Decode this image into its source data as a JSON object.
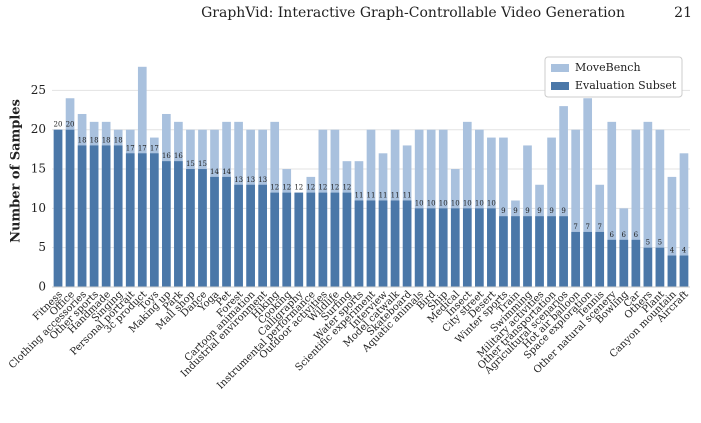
{
  "header": {
    "title": "GraphVid: Interactive Graph-Controllable Video Generation",
    "page": "21"
  },
  "chart_data": {
    "type": "bar",
    "ylabel": "Number of Samples",
    "categories": [
      "Fitness",
      "Office",
      "Clothing accessories",
      "Other sports",
      "Handmade",
      "Singing",
      "Personal portrait",
      "3c product",
      "Toys",
      "Making up",
      "Park",
      "Mall shop",
      "Dance",
      "Yoga",
      "Pet",
      "Forest",
      "Cartoon animation",
      "Industrial environment",
      "Hiking",
      "Cooking",
      "Calligraphy",
      "Instrumental performance",
      "Outdoor activities",
      "Wildlife",
      "Surfing",
      "Water sports",
      "Scientific experiment",
      "Interview",
      "Model catwalk",
      "Skateboard",
      "Aquatic animals",
      "Bird",
      "Ship",
      "Medical",
      "Insect",
      "City street",
      "Desert",
      "Winter sports",
      "Train",
      "Swimming",
      "Military activities",
      "Other transportation",
      "Agricultural scenarios",
      "Hot air balloon",
      "Space exploration",
      "Tennis",
      "Other natural scenery",
      "Bowling",
      "Car",
      "Others",
      "Plant",
      "Canyon mountain",
      "Aircraft"
    ],
    "series": [
      {
        "name": "MoveBench",
        "color": "#a9c1de",
        "values": [
          20,
          24,
          22,
          21,
          21,
          20,
          20,
          28,
          19,
          22,
          21,
          20,
          20,
          20,
          21,
          21,
          20,
          20,
          21,
          15,
          12,
          14,
          20,
          20,
          16,
          16,
          20,
          17,
          20,
          18,
          20,
          20,
          20,
          15,
          21,
          20,
          19,
          19,
          11,
          18,
          13,
          19,
          23,
          20,
          24,
          13,
          21,
          10,
          20,
          21,
          20,
          14,
          17
        ]
      },
      {
        "name": "Evaluation Subset",
        "color": "#4a77a8",
        "values": [
          20,
          20,
          18,
          18,
          18,
          18,
          17,
          17,
          17,
          16,
          16,
          15,
          15,
          14,
          14,
          13,
          13,
          13,
          12,
          12,
          12,
          12,
          12,
          12,
          12,
          11,
          11,
          11,
          11,
          11,
          10,
          10,
          10,
          10,
          10,
          10,
          10,
          9,
          9,
          9,
          9,
          9,
          9,
          7,
          7,
          7,
          6,
          6,
          6,
          5,
          5,
          4,
          4
        ]
      }
    ],
    "ylim": [
      0,
      29.5
    ],
    "yticks": [
      0,
      5,
      10,
      15,
      20,
      25
    ],
    "grid": true,
    "legend": "upper right"
  }
}
